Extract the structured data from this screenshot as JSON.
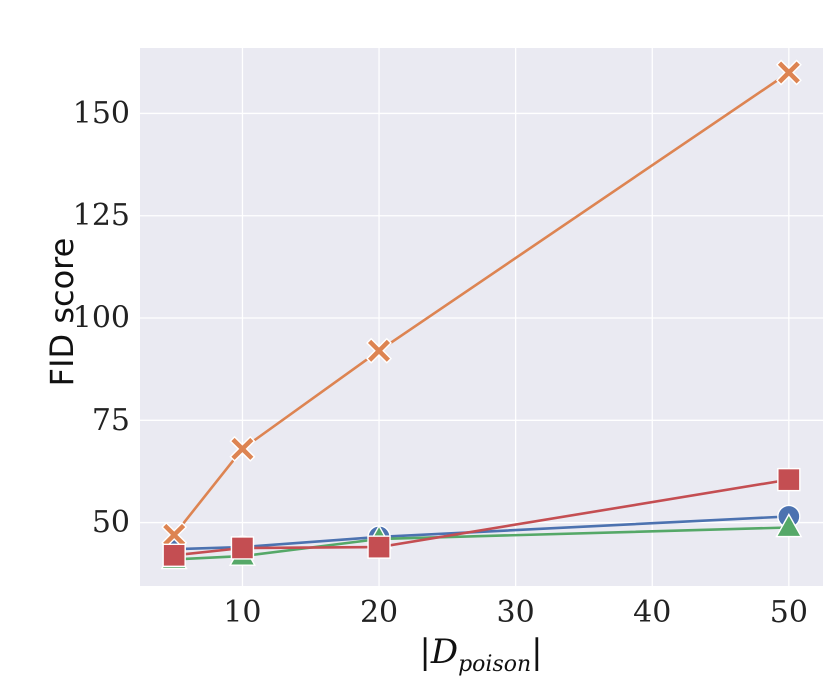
{
  "chart_data": {
    "type": "line",
    "x": [
      5,
      10,
      20,
      50
    ],
    "xlabel": "|D_poison|",
    "xlabel_parts": {
      "bar_left": "|",
      "script_letter": "D",
      "subscript": "poison",
      "bar_right": "|"
    },
    "ylabel": "FID score",
    "xlim": [
      2.5,
      52.5
    ],
    "ylim": [
      34.5,
      166
    ],
    "xticks": [
      10,
      20,
      30,
      40,
      50
    ],
    "yticks": [
      50,
      75,
      100,
      125,
      150
    ],
    "grid": true,
    "background": "#EAEAF2",
    "series": [
      {
        "values": [
          43.5,
          44.0,
          46.5,
          51.5
        ],
        "color": "#4C72B0",
        "marker": "circle"
      },
      {
        "values": [
          47.0,
          68.0,
          92.0,
          160.0
        ],
        "color": "#DD8452",
        "marker": "x"
      },
      {
        "values": [
          41.0,
          41.8,
          46.0,
          48.8
        ],
        "color": "#55A868",
        "marker": "triangle"
      },
      {
        "values": [
          42.0,
          43.8,
          44.0,
          60.5
        ],
        "color": "#C44E52",
        "marker": "square"
      }
    ]
  }
}
